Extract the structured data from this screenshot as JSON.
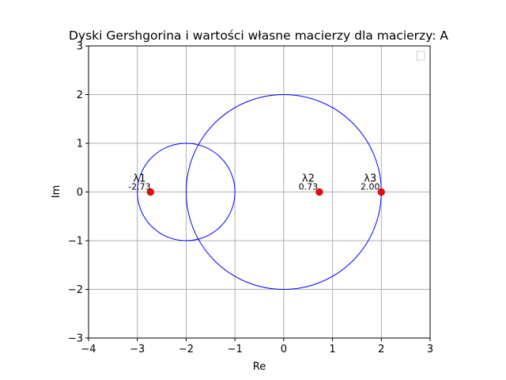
{
  "chart_data": {
    "type": "scatter",
    "title": "Dyski Gershgorina i wartości własne macierzy dla macierzy: A",
    "xlabel": "Re",
    "ylabel": "Im",
    "xlim": [
      -4,
      3
    ],
    "ylim": [
      -3,
      3
    ],
    "xticks": [
      "−4",
      "−3",
      "−2",
      "−1",
      "0",
      "1",
      "2",
      "3"
    ],
    "yticks": [
      "−3",
      "−2",
      "−1",
      "0",
      "1",
      "2",
      "3"
    ],
    "grid": true,
    "legend": "top-right",
    "discs": [
      {
        "center": [
          -2,
          0
        ],
        "radius": 1
      },
      {
        "center": [
          0,
          0
        ],
        "radius": 2
      }
    ],
    "eigenvalues": [
      {
        "name": "λ1",
        "re": -2.73,
        "im": 0,
        "label": "-2.73"
      },
      {
        "name": "λ2",
        "re": 0.73,
        "im": 0,
        "label": "0.73"
      },
      {
        "name": "λ3",
        "re": 2.0,
        "im": 0,
        "label": "2.00"
      }
    ],
    "colors": {
      "disc": "#0000ff",
      "point": "#ff0000",
      "point_edge": "#8b0000",
      "grid": "#b0b0b0"
    }
  }
}
